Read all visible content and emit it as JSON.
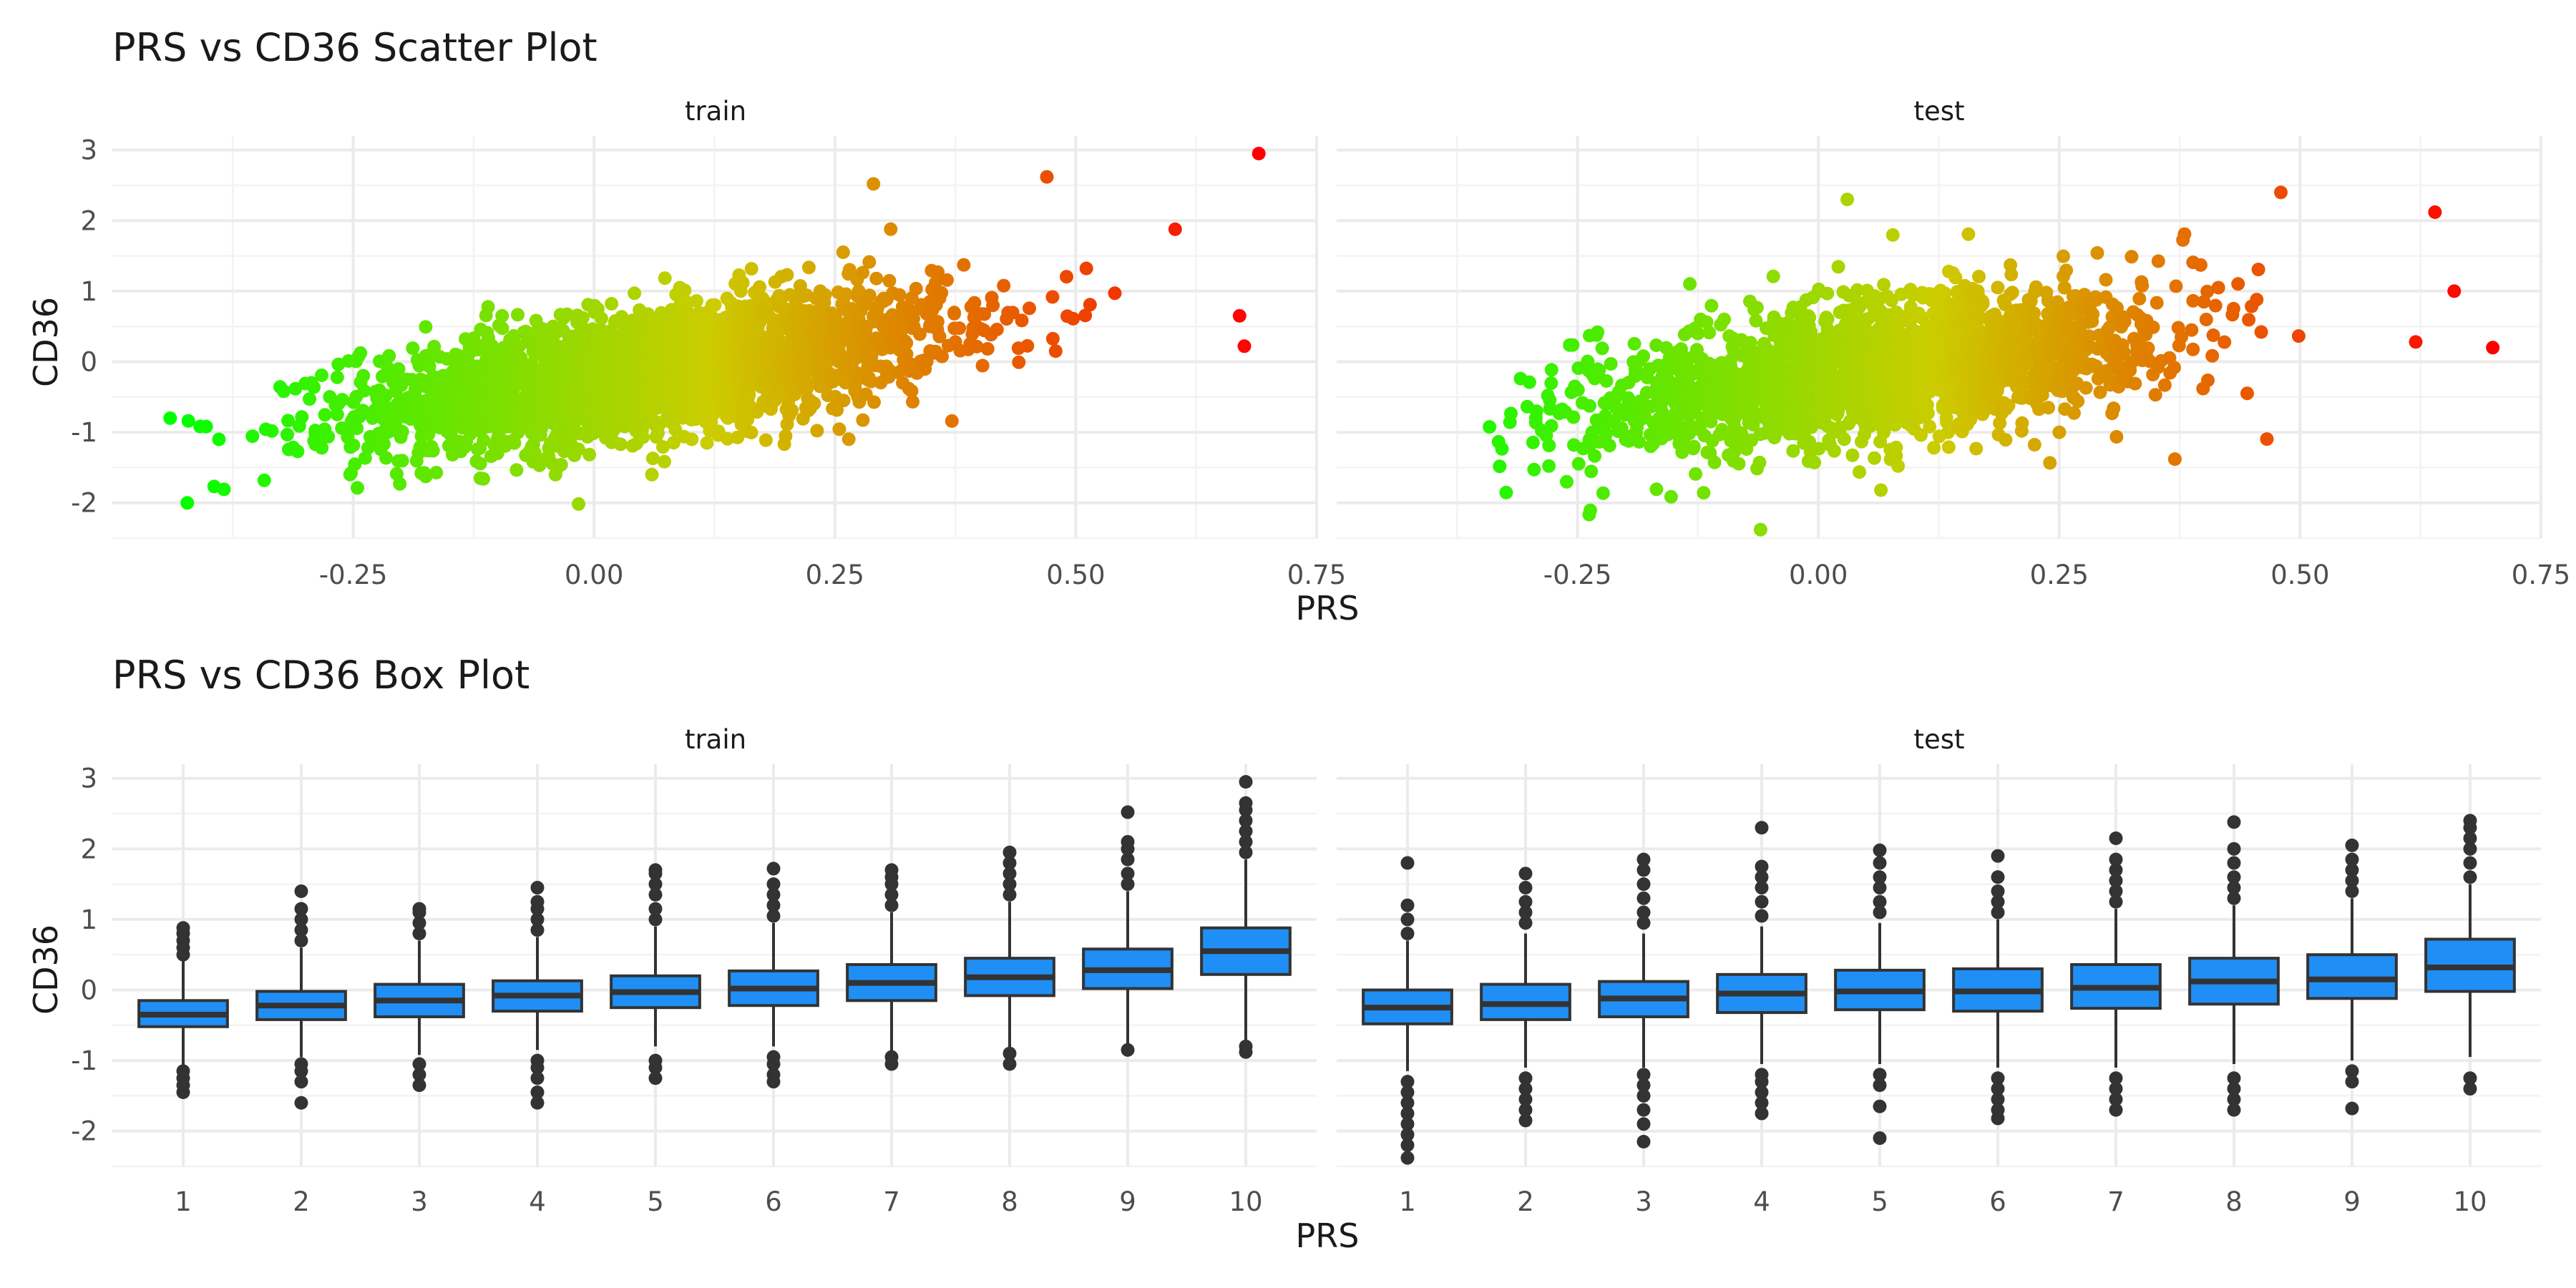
{
  "chart_data": [
    {
      "type": "scatter",
      "title": "PRS vs CD36 Scatter Plot",
      "xlabel": "PRS",
      "ylabel": "CD36",
      "facets": [
        "train",
        "test"
      ],
      "xlim": [
        -0.5,
        0.75
      ],
      "ylim": [
        -2.5,
        3.2
      ],
      "xticks": [
        -0.25,
        0.0,
        0.25,
        0.5,
        0.75
      ],
      "xtick_labels": [
        "-0.25",
        "0.00",
        "0.25",
        "0.50",
        "0.75"
      ],
      "yticks": [
        -2,
        -1,
        0,
        1,
        2,
        3
      ],
      "ytick_labels": [
        "-2",
        "-1",
        "0",
        "1",
        "2",
        "3"
      ],
      "color_gradient": [
        "#00ff00",
        "#cccc00",
        "#ff0000"
      ],
      "grid": true,
      "legend": "none",
      "series": [
        {
          "name": "train",
          "x_range": [
            -0.44,
            0.69
          ],
          "slope": 1.9,
          "intercept": -0.25,
          "spread": 0.45,
          "n_points": 2600,
          "notable_points": [
            [
              0.69,
              2.95
            ],
            [
              0.67,
              0.65
            ],
            [
              0.675,
              0.22
            ],
            [
              -0.44,
              -0.8
            ],
            [
              0.47,
              2.62
            ],
            [
              0.29,
              2.52
            ],
            [
              -0.04,
              -1.6
            ],
            [
              0.06,
              -1.6
            ]
          ]
        },
        {
          "name": "test",
          "x_range": [
            -0.36,
            0.7
          ],
          "slope": 1.7,
          "intercept": -0.22,
          "spread": 0.5,
          "n_points": 1900,
          "notable_points": [
            [
              0.64,
              2.12
            ],
            [
              0.66,
              1.0
            ],
            [
              0.7,
              0.2
            ],
            [
              0.62,
              0.28
            ],
            [
              0.03,
              2.3
            ],
            [
              -0.06,
              -2.38
            ],
            [
              0.37,
              -1.38
            ],
            [
              0.48,
              2.4
            ]
          ]
        }
      ]
    },
    {
      "type": "box",
      "title": "PRS vs CD36 Box Plot",
      "xlabel": "PRS",
      "ylabel": "CD36",
      "facets": [
        "train",
        "test"
      ],
      "categories": [
        "1",
        "2",
        "3",
        "4",
        "5",
        "6",
        "7",
        "8",
        "9",
        "10"
      ],
      "ylim": [
        -2.5,
        3.2
      ],
      "yticks": [
        -2,
        -1,
        0,
        1,
        2,
        3
      ],
      "ytick_labels": [
        "-2",
        "-1",
        "0",
        "1",
        "2",
        "3"
      ],
      "box_color": "#1f8ff5",
      "grid": true,
      "series": [
        {
          "name": "train",
          "q1": [
            -0.52,
            -0.42,
            -0.38,
            -0.3,
            -0.25,
            -0.22,
            -0.15,
            -0.08,
            0.02,
            0.22
          ],
          "median": [
            -0.35,
            -0.22,
            -0.15,
            -0.08,
            -0.03,
            0.02,
            0.1,
            0.18,
            0.28,
            0.55
          ],
          "q3": [
            -0.15,
            -0.02,
            0.08,
            0.13,
            0.2,
            0.27,
            0.36,
            0.45,
            0.58,
            0.88
          ],
          "whisker_low": [
            -1.1,
            -0.95,
            -0.92,
            -0.85,
            -0.8,
            -0.8,
            -0.88,
            -0.82,
            -0.85,
            -0.75
          ],
          "whisker_high": [
            0.45,
            0.6,
            0.7,
            0.75,
            0.9,
            0.95,
            1.1,
            1.25,
            1.4,
            1.85
          ],
          "outliers": [
            [
              -1.15,
              -1.25,
              -1.35,
              -1.45,
              0.5,
              0.6,
              0.7,
              0.8,
              0.88
            ],
            [
              -1.05,
              -1.15,
              -1.3,
              -1.6,
              0.7,
              0.85,
              1.0,
              1.15,
              1.4
            ],
            [
              -1.05,
              -1.2,
              -1.35,
              0.8,
              0.95,
              1.1,
              1.15
            ],
            [
              -1.0,
              -1.1,
              -1.25,
              -1.45,
              -1.6,
              0.85,
              1.0,
              1.15,
              1.25,
              1.45
            ],
            [
              -1.0,
              -1.1,
              -1.25,
              1.0,
              1.15,
              1.35,
              1.5,
              1.65,
              1.7
            ],
            [
              -0.95,
              -1.05,
              -1.2,
              -1.3,
              1.05,
              1.2,
              1.35,
              1.5,
              1.72
            ],
            [
              -0.95,
              -1.05,
              1.2,
              1.35,
              1.5,
              1.6,
              1.7
            ],
            [
              -0.9,
              -1.05,
              1.35,
              1.5,
              1.65,
              1.8,
              1.95
            ],
            [
              -0.85,
              1.5,
              1.65,
              1.85,
              2.0,
              2.1,
              2.52
            ],
            [
              -0.8,
              -0.88,
              1.95,
              2.1,
              2.25,
              2.4,
              2.55,
              2.65,
              2.95
            ]
          ]
        },
        {
          "name": "test",
          "q1": [
            -0.48,
            -0.42,
            -0.38,
            -0.32,
            -0.28,
            -0.3,
            -0.26,
            -0.2,
            -0.12,
            -0.02
          ],
          "median": [
            -0.25,
            -0.2,
            -0.12,
            -0.05,
            -0.02,
            -0.02,
            0.03,
            0.12,
            0.15,
            0.32
          ],
          "q3": [
            0.0,
            0.08,
            0.12,
            0.22,
            0.28,
            0.3,
            0.36,
            0.45,
            0.5,
            0.72
          ],
          "whisker_low": [
            -1.15,
            -1.1,
            -1.1,
            -1.05,
            -1.05,
            -1.1,
            -1.1,
            -1.05,
            -1.0,
            -0.95
          ],
          "whisker_high": [
            0.7,
            0.8,
            0.8,
            0.9,
            0.95,
            1.0,
            1.15,
            1.2,
            1.3,
            1.5
          ],
          "outliers": [
            [
              -1.3,
              -1.45,
              -1.6,
              -1.75,
              -1.9,
              -2.05,
              -2.2,
              -2.38,
              0.8,
              1.0,
              1.2,
              1.8
            ],
            [
              -1.25,
              -1.4,
              -1.55,
              -1.7,
              -1.85,
              0.95,
              1.1,
              1.25,
              1.45,
              1.65
            ],
            [
              -1.2,
              -1.35,
              -1.5,
              -1.7,
              -1.9,
              -2.15,
              0.95,
              1.1,
              1.3,
              1.5,
              1.7,
              1.85
            ],
            [
              -1.2,
              -1.3,
              -1.45,
              -1.6,
              -1.75,
              1.05,
              1.25,
              1.45,
              1.6,
              1.75,
              2.3
            ],
            [
              -1.2,
              -1.35,
              -1.65,
              -2.1,
              1.1,
              1.25,
              1.45,
              1.6,
              1.8,
              1.98
            ],
            [
              -1.25,
              -1.4,
              -1.55,
              -1.7,
              -1.82,
              1.1,
              1.25,
              1.4,
              1.6,
              1.9
            ],
            [
              -1.25,
              -1.4,
              -1.55,
              -1.7,
              1.25,
              1.4,
              1.55,
              1.7,
              1.85,
              2.15
            ],
            [
              -1.25,
              -1.4,
              -1.55,
              -1.7,
              1.3,
              1.45,
              1.6,
              1.8,
              2.0,
              2.38
            ],
            [
              -1.15,
              -1.3,
              -1.68,
              1.4,
              1.55,
              1.7,
              1.85,
              2.05
            ],
            [
              -1.25,
              -1.4,
              1.6,
              1.8,
              2.0,
              2.15,
              2.3,
              2.4
            ]
          ]
        }
      ]
    }
  ]
}
